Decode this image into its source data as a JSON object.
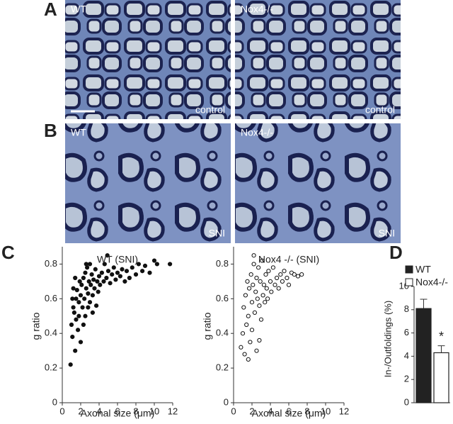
{
  "panel_labels": [
    "A",
    "B",
    "C",
    "D"
  ],
  "micrographs": [
    {
      "genotype": "WT",
      "condition": "control"
    },
    {
      "genotype": "Nox4-/-",
      "condition": "control"
    },
    {
      "genotype": "WT",
      "condition": "SNI"
    },
    {
      "genotype": "Nox4-/-",
      "condition": "SNI"
    }
  ],
  "chart_data": [
    {
      "type": "scatter",
      "title": "WT (SNI)",
      "x_label": "Axonal size (μm)",
      "y_label": "g ratio",
      "color": "#111111",
      "filled": true,
      "xlim": [
        0,
        12
      ],
      "xticks": [
        0,
        2,
        4,
        6,
        8,
        10,
        12
      ],
      "ylim": [
        0,
        0.9
      ],
      "yticks": [
        0,
        0.2,
        0.4,
        0.6,
        0.8
      ],
      "x": [
        0.9,
        1.0,
        1.1,
        1.2,
        1.3,
        1.4,
        1.5,
        1.5,
        1.6,
        1.7,
        1.8,
        1.9,
        2.0,
        2.0,
        2.1,
        2.2,
        2.3,
        2.4,
        2.5,
        2.5,
        2.6,
        2.7,
        2.8,
        2.9,
        3.0,
        3.0,
        3.1,
        3.2,
        3.3,
        3.4,
        3.5,
        3.6,
        3.8,
        3.9,
        4.0,
        4.1,
        4.3,
        4.5,
        4.6,
        4.8,
        5.0,
        5.2,
        5.4,
        5.6,
        5.8,
        6.0,
        6.3,
        6.5,
        6.8,
        7.0,
        7.3,
        7.6,
        8.0,
        8.3,
        8.7,
        9.0,
        9.5,
        10.0,
        10.3,
        11.7,
        1.2,
        1.8,
        2.3,
        2.8,
        3.3,
        1.1,
        2.6,
        3.7,
        4.9,
        1.4
      ],
      "y": [
        0.22,
        0.45,
        0.38,
        0.55,
        0.52,
        0.3,
        0.6,
        0.48,
        0.65,
        0.42,
        0.58,
        0.7,
        0.62,
        0.35,
        0.68,
        0.55,
        0.72,
        0.6,
        0.75,
        0.5,
        0.66,
        0.78,
        0.63,
        0.7,
        0.58,
        0.8,
        0.68,
        0.74,
        0.62,
        0.71,
        0.66,
        0.77,
        0.7,
        0.64,
        0.73,
        0.68,
        0.75,
        0.7,
        0.8,
        0.72,
        0.76,
        0.69,
        0.74,
        0.78,
        0.71,
        0.75,
        0.73,
        0.77,
        0.7,
        0.76,
        0.72,
        0.78,
        0.74,
        0.8,
        0.76,
        0.79,
        0.75,
        0.82,
        0.8,
        0.8,
        0.66,
        0.5,
        0.45,
        0.55,
        0.52,
        0.6,
        0.8,
        0.56,
        0.85,
        0.72
      ]
    },
    {
      "type": "scatter",
      "title": "Nox4 -/- (SNI)",
      "x_label": "Axonal size (μm)",
      "y_label": "g ratio",
      "color": "#111111",
      "filled": false,
      "xlim": [
        0,
        12
      ],
      "xticks": [
        0,
        2,
        4,
        6,
        8,
        10,
        12
      ],
      "ylim": [
        0,
        0.9
      ],
      "yticks": [
        0,
        0.2,
        0.4,
        0.6,
        0.8
      ],
      "x": [
        0.8,
        1.0,
        1.1,
        1.2,
        1.3,
        1.4,
        1.5,
        1.6,
        1.7,
        1.8,
        1.9,
        2.0,
        2.0,
        2.1,
        2.2,
        2.3,
        2.4,
        2.5,
        2.5,
        2.6,
        2.7,
        2.8,
        2.9,
        3.0,
        3.1,
        3.2,
        3.3,
        3.4,
        3.5,
        3.6,
        3.7,
        3.8,
        4.0,
        4.1,
        4.3,
        4.5,
        4.7,
        4.9,
        5.1,
        5.3,
        5.5,
        5.8,
        6.0,
        6.3,
        6.6,
        7.0,
        7.4,
        1.6,
        2.2,
        2.8
      ],
      "y": [
        0.32,
        0.4,
        0.55,
        0.28,
        0.62,
        0.45,
        0.7,
        0.5,
        0.66,
        0.35,
        0.74,
        0.58,
        0.42,
        0.68,
        0.8,
        0.52,
        0.64,
        0.72,
        0.3,
        0.6,
        0.78,
        0.56,
        0.7,
        0.48,
        0.82,
        0.62,
        0.68,
        0.58,
        0.74,
        0.66,
        0.6,
        0.76,
        0.7,
        0.64,
        0.78,
        0.68,
        0.72,
        0.66,
        0.74,
        0.7,
        0.76,
        0.72,
        0.68,
        0.75,
        0.74,
        0.73,
        0.74,
        0.25,
        0.85,
        0.36
      ]
    },
    {
      "type": "bar",
      "y_label": "In-/Outfoldings (%)",
      "categories": [
        "WT",
        "Nox4-/-"
      ],
      "values": [
        8.1,
        4.3
      ],
      "errors": [
        0.8,
        0.6
      ],
      "colors": [
        "#222222",
        "#ffffff"
      ],
      "ylim": [
        0,
        10
      ],
      "yticks": [
        0,
        2,
        4,
        6,
        8,
        10
      ],
      "annotation": "*"
    }
  ]
}
